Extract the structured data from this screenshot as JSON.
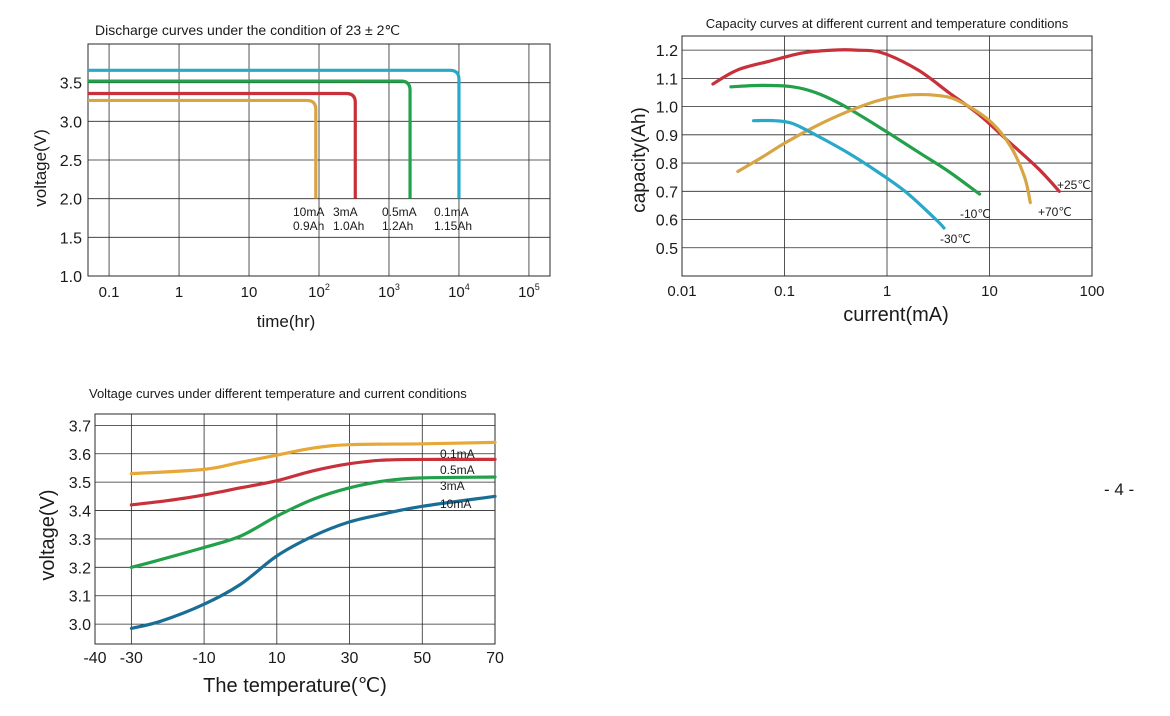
{
  "page_number": "- 4 -",
  "chart_data": [
    {
      "type": "line",
      "title": "Discharge curves under the condition of 23 ± 2℃",
      "xlabel": "time(hr)",
      "ylabel": "voltage(V)",
      "xscale": "log",
      "xlim": [
        0.05,
        200000
      ],
      "ylim": [
        1.0,
        4.0
      ],
      "grid": true,
      "xticks": [
        {
          "v": 0.1,
          "label": "0.1",
          "sup": ""
        },
        {
          "v": 1,
          "label": "1",
          "sup": ""
        },
        {
          "v": 10,
          "label": "10",
          "sup": ""
        },
        {
          "v": 100,
          "label": "10",
          "sup": "2"
        },
        {
          "v": 1000,
          "label": "10",
          "sup": "3"
        },
        {
          "v": 10000,
          "label": "10",
          "sup": "4"
        },
        {
          "v": 100000,
          "label": "10",
          "sup": "5"
        }
      ],
      "yticks": [
        "1.0",
        "1.5",
        "2.0",
        "2.5",
        "3.0",
        "3.5"
      ],
      "series": [
        {
          "color": "#29a8c8",
          "plateau": 3.66,
          "end_time": 10000,
          "cutoff": 2.0
        },
        {
          "color": "#22a04a",
          "plateau": 3.52,
          "end_time": 2000,
          "cutoff": 2.0
        },
        {
          "color": "#c8303a",
          "plateau": 3.36,
          "end_time": 330,
          "cutoff": 2.0
        },
        {
          "color": "#d8a545",
          "plateau": 3.27,
          "end_time": 90,
          "cutoff": 2.0
        }
      ],
      "annotations": [
        {
          "lines": [
            "10mA",
            "0.9Ah"
          ]
        },
        {
          "lines": [
            "3mA",
            "1.0Ah"
          ]
        },
        {
          "lines": [
            "0.5mA",
            "1.2Ah"
          ]
        },
        {
          "lines": [
            "0.1mA",
            "1.15Ah"
          ]
        }
      ]
    },
    {
      "type": "line",
      "title": "Capacity curves at different current and temperature conditions",
      "xlabel": "current(mA)",
      "ylabel": "capacity(Ah)",
      "xscale": "log",
      "xlim": [
        0.01,
        100
      ],
      "ylim": [
        0.4,
        1.25
      ],
      "grid": true,
      "xticks": [
        "0.01",
        "0.1",
        "1",
        "10",
        "100"
      ],
      "yticks": [
        "0.5",
        "0.6",
        "0.7",
        "0.8",
        "0.9",
        "1.0",
        "1.1",
        "1.2"
      ],
      "series": [
        {
          "name": "+25℃",
          "color": "#c8303a",
          "points": [
            [
              0.02,
              1.08
            ],
            [
              0.035,
              1.13
            ],
            [
              0.07,
              1.16
            ],
            [
              0.15,
              1.19
            ],
            [
              0.3,
              1.2
            ],
            [
              0.5,
              1.2
            ],
            [
              0.9,
              1.19
            ],
            [
              2,
              1.13
            ],
            [
              4,
              1.05
            ],
            [
              8,
              0.97
            ],
            [
              15,
              0.88
            ],
            [
              30,
              0.78
            ],
            [
              48,
              0.7
            ]
          ]
        },
        {
          "name": "-10℃",
          "color": "#22a04a",
          "points": [
            [
              0.03,
              1.07
            ],
            [
              0.06,
              1.075
            ],
            [
              0.12,
              1.07
            ],
            [
              0.2,
              1.05
            ],
            [
              0.35,
              1.01
            ],
            [
              0.6,
              0.96
            ],
            [
              1,
              0.91
            ],
            [
              2,
              0.84
            ],
            [
              4,
              0.77
            ],
            [
              8,
              0.69
            ]
          ]
        },
        {
          "name": "+70℃",
          "color": "#d8a545",
          "points": [
            [
              0.035,
              0.77
            ],
            [
              0.06,
              0.82
            ],
            [
              0.1,
              0.87
            ],
            [
              0.2,
              0.93
            ],
            [
              0.4,
              0.98
            ],
            [
              0.8,
              1.02
            ],
            [
              1.5,
              1.04
            ],
            [
              3,
              1.04
            ],
            [
              5,
              1.02
            ],
            [
              10,
              0.95
            ],
            [
              16,
              0.86
            ],
            [
              22,
              0.75
            ],
            [
              25,
              0.66
            ]
          ]
        },
        {
          "name": "-30℃",
          "color": "#29a8c8",
          "points": [
            [
              0.05,
              0.95
            ],
            [
              0.08,
              0.95
            ],
            [
              0.12,
              0.94
            ],
            [
              0.2,
              0.9
            ],
            [
              0.4,
              0.84
            ],
            [
              0.8,
              0.77
            ],
            [
              1.5,
              0.7
            ],
            [
              3,
              0.6
            ],
            [
              3.6,
              0.57
            ]
          ]
        }
      ]
    },
    {
      "type": "line",
      "title": "Voltage curves under different temperature and current conditions",
      "xlabel": "The temperature(℃)",
      "ylabel": "voltage(V)",
      "xlim": [
        -40,
        70
      ],
      "ylim": [
        2.93,
        3.74
      ],
      "grid": true,
      "xticks": [
        "-40",
        "-30",
        "-10",
        "10",
        "30",
        "50",
        "70"
      ],
      "yticks": [
        "3.0",
        "3.1",
        "3.2",
        "3.3",
        "3.4",
        "3.5",
        "3.6",
        "3.7"
      ],
      "series": [
        {
          "name": "0.1mA",
          "color": "#e8a838",
          "points": [
            [
              -30,
              3.53
            ],
            [
              -10,
              3.545
            ],
            [
              0,
              3.57
            ],
            [
              10,
              3.595
            ],
            [
              20,
              3.62
            ],
            [
              30,
              3.632
            ],
            [
              50,
              3.635
            ],
            [
              70,
              3.64
            ]
          ]
        },
        {
          "name": "0.5mA",
          "color": "#c8303a",
          "points": [
            [
              -30,
              3.42
            ],
            [
              -20,
              3.435
            ],
            [
              -10,
              3.455
            ],
            [
              0,
              3.48
            ],
            [
              10,
              3.505
            ],
            [
              20,
              3.54
            ],
            [
              30,
              3.565
            ],
            [
              40,
              3.578
            ],
            [
              55,
              3.58
            ],
            [
              70,
              3.58
            ]
          ]
        },
        {
          "name": "3mA",
          "color": "#22a04a",
          "points": [
            [
              -30,
              3.2
            ],
            [
              -24,
              3.22
            ],
            [
              -10,
              3.27
            ],
            [
              0,
              3.31
            ],
            [
              10,
              3.38
            ],
            [
              20,
              3.44
            ],
            [
              30,
              3.48
            ],
            [
              40,
              3.505
            ],
            [
              50,
              3.515
            ],
            [
              70,
              3.518
            ]
          ]
        },
        {
          "name": "10mA",
          "color": "#1a6e96",
          "points": [
            [
              -30,
              2.985
            ],
            [
              -22,
              3.01
            ],
            [
              -10,
              3.07
            ],
            [
              0,
              3.14
            ],
            [
              10,
              3.24
            ],
            [
              20,
              3.31
            ],
            [
              30,
              3.36
            ],
            [
              40,
              3.39
            ],
            [
              50,
              3.415
            ],
            [
              70,
              3.45
            ]
          ]
        }
      ]
    }
  ]
}
